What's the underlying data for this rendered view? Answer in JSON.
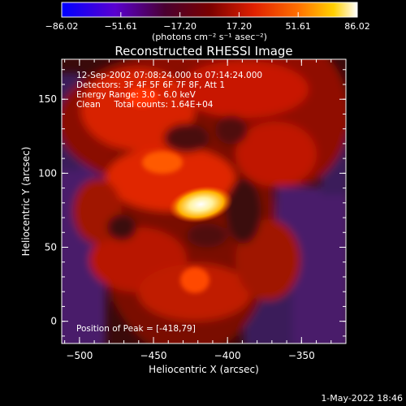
{
  "colorbar": {
    "ticks": [
      -86.02,
      -51.61,
      -17.2,
      17.2,
      51.61,
      86.02
    ],
    "tick_labels": [
      "-86.02",
      "-51.61",
      "-17.20",
      "17.20",
      "51.61",
      "86.02"
    ],
    "range": [
      -86.02,
      86.02
    ],
    "unit_label": "(photons cm⁻² s⁻¹ asec⁻²)",
    "colors": [
      "#0000ff",
      "#6a00c8",
      "#5a0030",
      "#c81000",
      "#ff6a00",
      "#ffd000",
      "#ffffff"
    ]
  },
  "chart_data": {
    "type": "heatmap",
    "title": "Reconstructed RHESSI Image",
    "xlabel": "Heliocentric X (arcsec)",
    "ylabel": "Heliocentric Y (arcsec)",
    "xlim": [
      -512,
      -320
    ],
    "ylim": [
      -15,
      177
    ],
    "xticks": [
      -500,
      -450,
      -400,
      -350
    ],
    "yticks": [
      0,
      50,
      100,
      150
    ],
    "peak": {
      "x": -418,
      "y": 79,
      "value": 86.02
    },
    "info_lines": [
      "12-Sep-2002 07:08:24.000 to 07:14:24.000",
      "Detectors: 3F 4F 5F 6F 7F 8F, Att 1",
      "Energy Range: 3.0 - 6.0 keV",
      "Clean     Total counts: 1.64E+04"
    ],
    "peak_label": "Position of Peak = [-418,79]"
  },
  "footer": {
    "timestamp": "1-May-2022 18:46"
  }
}
